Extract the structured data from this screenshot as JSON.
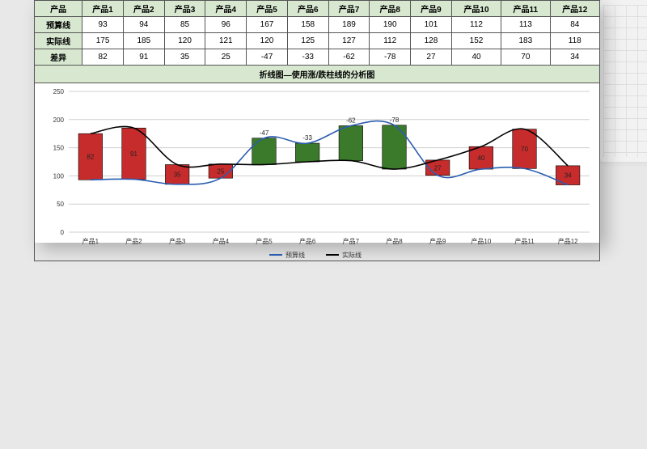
{
  "table": {
    "header_label": "产品",
    "columns": [
      "产品1",
      "产品2",
      "产品3",
      "产品4",
      "产品5",
      "产品6",
      "产品7",
      "产品8",
      "产品9",
      "产品10",
      "产品11",
      "产品12"
    ],
    "rows": [
      {
        "label": "预算线",
        "values": [
          93,
          94,
          85,
          96,
          167,
          158,
          189,
          190,
          101,
          112,
          113,
          84
        ]
      },
      {
        "label": "实际线",
        "values": [
          175,
          185,
          120,
          121,
          120,
          125,
          127,
          112,
          128,
          152,
          183,
          118
        ]
      },
      {
        "label": "差异",
        "values": [
          82,
          91,
          35,
          25,
          -47,
          -33,
          -62,
          -78,
          27,
          40,
          70,
          34
        ]
      }
    ]
  },
  "chart": {
    "title": "折线图—使用涨/跌柱线的分析图",
    "type": "line-with-updown-bars",
    "categories": [
      "产品1",
      "产品2",
      "产品3",
      "产品4",
      "产品5",
      "产品6",
      "产品7",
      "产品8",
      "产品9",
      "产品10",
      "产品11",
      "产品12"
    ],
    "series": [
      {
        "name": "预算线",
        "color": "#2a5db0",
        "values": [
          93,
          94,
          85,
          96,
          167,
          158,
          189,
          190,
          101,
          112,
          113,
          84
        ]
      },
      {
        "name": "实际线",
        "color": "#000000",
        "values": [
          175,
          185,
          120,
          121,
          120,
          125,
          127,
          112,
          128,
          152,
          183,
          118
        ]
      }
    ],
    "diff_values": [
      82,
      91,
      35,
      25,
      -47,
      -33,
      -62,
      -78,
      27,
      40,
      70,
      34
    ],
    "up_color": "#c72c2c",
    "down_color": "#3b7a2a",
    "ylim": [
      0,
      250
    ],
    "ytick_step": 50,
    "grid_color": "#cfcfcf",
    "background_color": "#ffffff",
    "bar_width_ratio": 0.55,
    "line_width": 1.6,
    "label_fontsize": 8,
    "legend": {
      "position": "bottom",
      "items": [
        "预算线",
        "实际线"
      ]
    }
  },
  "page": {
    "background_color": "#e8e8e8"
  }
}
